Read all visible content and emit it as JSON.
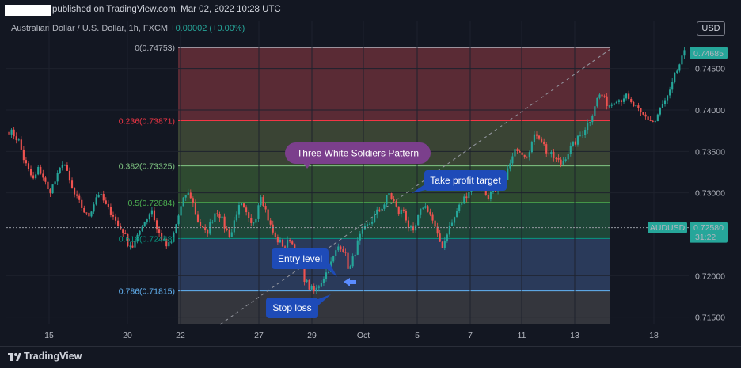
{
  "header": {
    "published": "published on TradingView.com, Mar 02, 2022 10:28 UTC",
    "symbol": "Australian Dollar / U.S. Dollar, 1h, FXCM",
    "change": "+0.00002 (+0.00%)",
    "currency": "USD"
  },
  "footer": {
    "brand": "TradingView"
  },
  "chart_data": {
    "type": "candlestick",
    "symbol": "AUDUSD",
    "ylim": [
      0.7141,
      0.7508
    ],
    "y_ticks": [
      "0.74500",
      "0.74000",
      "0.73500",
      "0.73000",
      "0.72000",
      "0.71500"
    ],
    "x_ticks": [
      "15",
      "20",
      "22",
      "27",
      "29",
      "Oct",
      "5",
      "7",
      "11",
      "13",
      "18"
    ],
    "last_price": {
      "label": "0.74685",
      "value": 0.74685
    },
    "current_price": {
      "label": "0.72580",
      "value": 0.7258,
      "name": "AUDUSD",
      "countdown": "31:22"
    },
    "fib_levels": [
      {
        "label": "0(0.74753)",
        "value": 0.74753,
        "color": "#b2b5be",
        "fill": "#5a2b35"
      },
      {
        "label": "0.236(0.73871)",
        "value": 0.73871,
        "color": "#f23645",
        "fill": "#3a4434"
      },
      {
        "label": "0.382(0.73325)",
        "value": 0.73325,
        "color": "#81c784",
        "fill": "#2e4a30"
      },
      {
        "label": "0.5(0.72884)",
        "value": 0.72884,
        "color": "#4caf50",
        "fill": "#1f4638"
      },
      {
        "label": "0.618(0.72448)",
        "value": 0.72448,
        "color": "#089981",
        "fill": "#2a3a5a"
      },
      {
        "label": "0.786(0.71815)",
        "value": 0.71815,
        "color": "#64b5f6",
        "fill": "#34363d"
      }
    ],
    "annotations": [
      {
        "text": "Three White Soldiers Pattern",
        "color": "#7b3f8c"
      },
      {
        "text": "Take profit target",
        "color": "#1e4bb8"
      },
      {
        "text": "Entry level",
        "color": "#1e4bb8"
      },
      {
        "text": "Stop loss",
        "color": "#1e4bb8"
      }
    ],
    "price_path": [
      [
        0.7375,
        0.737,
        0.7362,
        0.734,
        0.7325,
        0.7315,
        0.733,
        0.7318,
        0.73,
        0.731
      ],
      [
        0.7322,
        0.734,
        0.7318,
        0.73,
        0.729,
        0.728,
        0.727,
        0.7285,
        0.73,
        0.7292
      ],
      [
        0.728,
        0.7275,
        0.726,
        0.7255,
        0.724,
        0.7235,
        0.7245,
        0.7262,
        0.727,
        0.728
      ],
      [
        0.7255,
        0.7245,
        0.7235,
        0.724,
        0.7265,
        0.7285,
        0.73,
        0.7295,
        0.727,
        0.7258
      ],
      [
        0.725,
        0.7265,
        0.728,
        0.727,
        0.7255,
        0.7248,
        0.7275,
        0.7285,
        0.7275,
        0.726
      ],
      [
        0.727,
        0.73,
        0.728,
        0.726,
        0.7245,
        0.724,
        0.7235,
        0.7245,
        0.723,
        0.7215
      ],
      [
        0.7195,
        0.7185,
        0.718,
        0.719,
        0.72,
        0.721,
        0.7225,
        0.7238,
        0.723,
        0.7205
      ],
      [
        0.7225,
        0.7245,
        0.7255,
        0.7262,
        0.727,
        0.728,
        0.7285,
        0.73,
        0.729,
        0.7275
      ],
      [
        0.728,
        0.726,
        0.725,
        0.727,
        0.7285,
        0.728,
        0.7265,
        0.7245,
        0.7235,
        0.7255
      ],
      [
        0.7265,
        0.728,
        0.729,
        0.73,
        0.731,
        0.7312,
        0.7305,
        0.7295,
        0.73,
        0.7298
      ],
      [
        0.731,
        0.7325,
        0.734,
        0.7355,
        0.735,
        0.7345,
        0.736,
        0.7372,
        0.7365,
        0.735
      ],
      [
        0.7345,
        0.734,
        0.7335,
        0.7345,
        0.7355,
        0.7362,
        0.737,
        0.738,
        0.739,
        0.741
      ],
      [
        0.742,
        0.741,
        0.7405,
        0.7415,
        0.7412,
        0.7418,
        0.7408,
        0.7404,
        0.7395,
        0.7392
      ],
      [
        0.7388,
        0.7385,
        0.74,
        0.741,
        0.742,
        0.744,
        0.7455,
        0.7468
      ]
    ]
  }
}
